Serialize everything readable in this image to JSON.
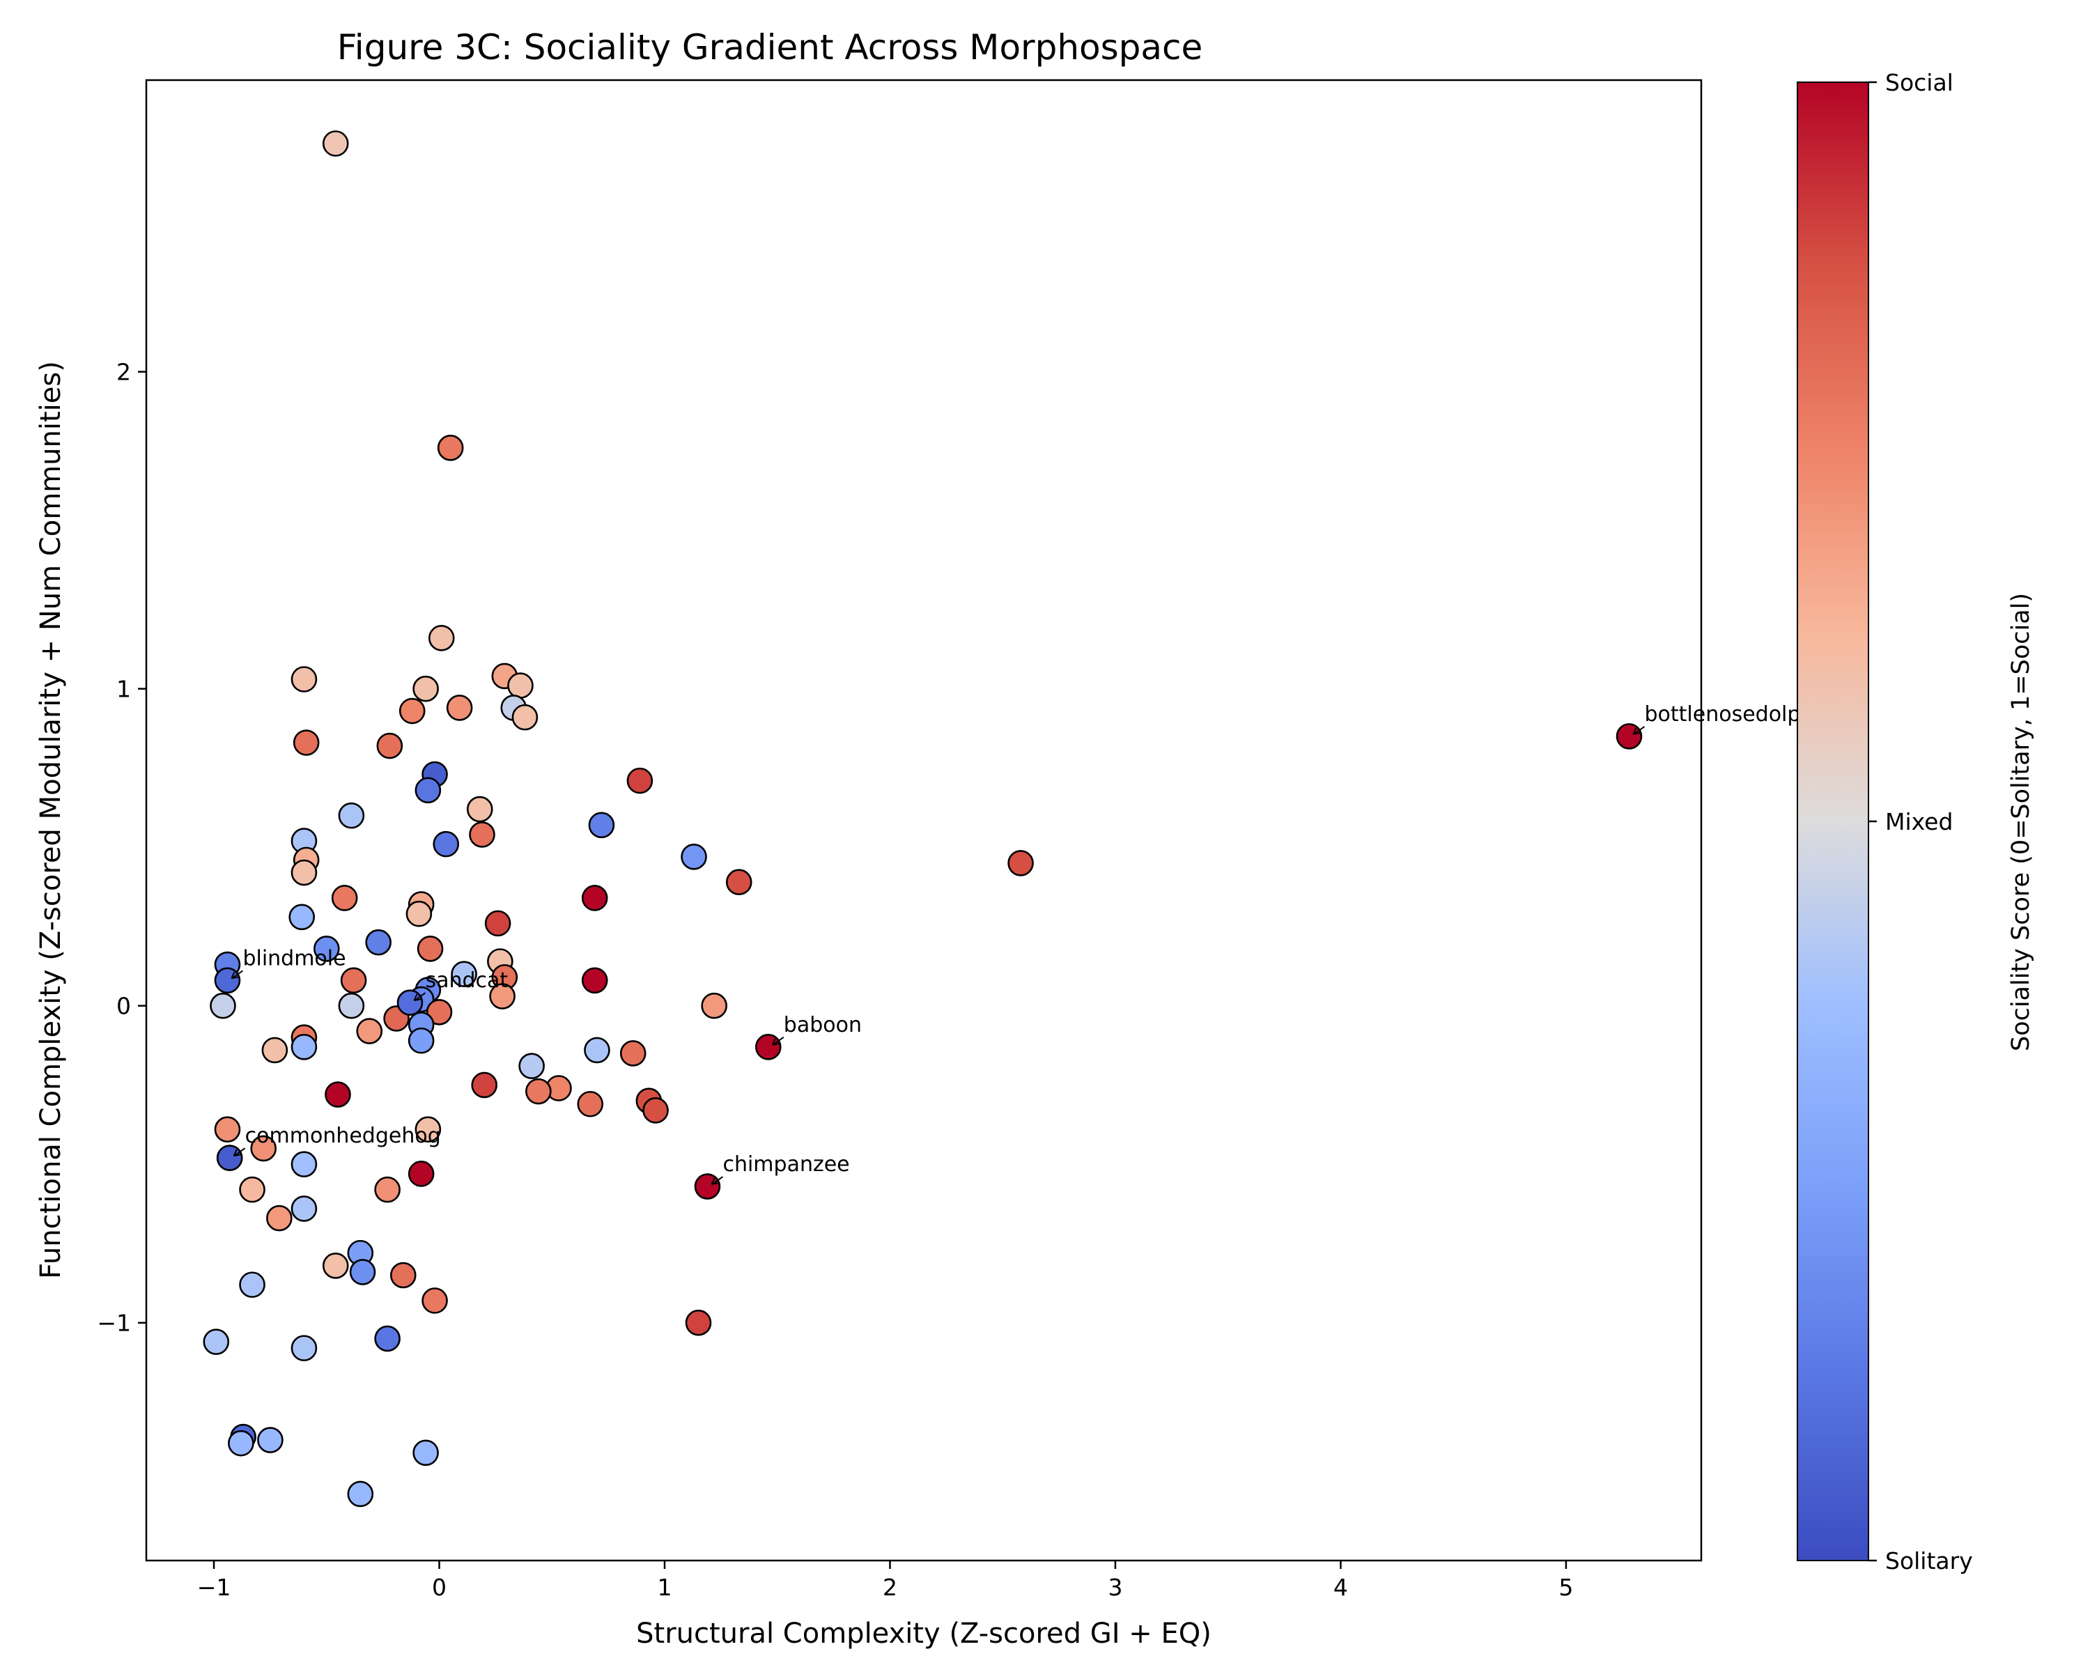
{
  "chart_data": {
    "type": "scatter",
    "title": "Figure 3C: Sociality Gradient Across Morphospace",
    "xlabel": "Structural Complexity (Z-scored GI + EQ)",
    "ylabel": "Functional Complexity (Z-scored Modularity + Num Communities)",
    "xlim": [
      -1.3,
      5.6
    ],
    "ylim": [
      -1.75,
      2.92
    ],
    "xticks": [
      -1,
      0,
      1,
      2,
      3,
      4,
      5
    ],
    "xtick_labels": [
      "−1",
      "0",
      "1",
      "2",
      "3",
      "4",
      "5"
    ],
    "yticks": [
      -1,
      0,
      1,
      2
    ],
    "ytick_labels": [
      "−1",
      "0",
      "1",
      "2"
    ],
    "grid": false,
    "colormap": "coolwarm",
    "colorbar": {
      "label": "Sociality Score (0=Solitary, 1=Social)",
      "range": [
        0,
        1
      ],
      "ticks": [
        0,
        0.5,
        1
      ],
      "tick_labels": [
        "Solitary",
        "Mixed",
        "Social"
      ]
    },
    "points": [
      {
        "x": -0.46,
        "y": 2.72,
        "c": 0.58
      },
      {
        "x": 0.05,
        "y": 1.76,
        "c": 0.78
      },
      {
        "x": 0.01,
        "y": 1.16,
        "c": 0.6
      },
      {
        "x": -0.6,
        "y": 1.03,
        "c": 0.6
      },
      {
        "x": 0.29,
        "y": 1.04,
        "c": 0.67
      },
      {
        "x": 0.36,
        "y": 1.01,
        "c": 0.6
      },
      {
        "x": -0.06,
        "y": 1.0,
        "c": 0.6
      },
      {
        "x": 0.09,
        "y": 0.94,
        "c": 0.72
      },
      {
        "x": 0.33,
        "y": 0.94,
        "c": 0.45
      },
      {
        "x": 0.38,
        "y": 0.91,
        "c": 0.6
      },
      {
        "x": -0.12,
        "y": 0.93,
        "c": 0.75
      },
      {
        "x": -0.59,
        "y": 0.83,
        "c": 0.8
      },
      {
        "x": -0.22,
        "y": 0.82,
        "c": 0.8
      },
      {
        "x": -0.02,
        "y": 0.73,
        "c": 0.05
      },
      {
        "x": -0.05,
        "y": 0.68,
        "c": 0.12
      },
      {
        "x": 0.89,
        "y": 0.71,
        "c": 0.9
      },
      {
        "x": 0.18,
        "y": 0.62,
        "c": 0.6
      },
      {
        "x": -0.39,
        "y": 0.6,
        "c": 0.4
      },
      {
        "x": 0.72,
        "y": 0.57,
        "c": 0.15
      },
      {
        "x": 0.19,
        "y": 0.54,
        "c": 0.8
      },
      {
        "x": -0.6,
        "y": 0.52,
        "c": 0.4
      },
      {
        "x": 0.03,
        "y": 0.51,
        "c": 0.12
      },
      {
        "x": 1.13,
        "y": 0.47,
        "c": 0.22
      },
      {
        "x": -0.59,
        "y": 0.46,
        "c": 0.65
      },
      {
        "x": 2.58,
        "y": 0.45,
        "c": 0.88
      },
      {
        "x": -0.6,
        "y": 0.42,
        "c": 0.6
      },
      {
        "x": 1.33,
        "y": 0.39,
        "c": 0.88
      },
      {
        "x": -0.42,
        "y": 0.34,
        "c": 0.78
      },
      {
        "x": 0.69,
        "y": 0.34,
        "c": 1.0
      },
      {
        "x": -0.08,
        "y": 0.32,
        "c": 0.66
      },
      {
        "x": -0.09,
        "y": 0.29,
        "c": 0.6
      },
      {
        "x": -0.61,
        "y": 0.28,
        "c": 0.35
      },
      {
        "x": 0.26,
        "y": 0.26,
        "c": 0.9
      },
      {
        "x": -0.27,
        "y": 0.2,
        "c": 0.15
      },
      {
        "x": -0.5,
        "y": 0.18,
        "c": 0.2
      },
      {
        "x": -0.04,
        "y": 0.18,
        "c": 0.8
      },
      {
        "x": 0.27,
        "y": 0.14,
        "c": 0.6
      },
      {
        "x": -0.94,
        "y": 0.13,
        "c": 0.15
      },
      {
        "x": 0.11,
        "y": 0.1,
        "c": 0.4
      },
      {
        "x": 0.29,
        "y": 0.09,
        "c": 0.8
      },
      {
        "x": -0.38,
        "y": 0.08,
        "c": 0.8
      },
      {
        "x": 0.69,
        "y": 0.08,
        "c": 1.0
      },
      {
        "x": -0.05,
        "y": 0.05,
        "c": 0.18
      },
      {
        "x": 0.28,
        "y": 0.03,
        "c": 0.7
      },
      {
        "x": -0.08,
        "y": 0.02,
        "c": 0.18
      },
      {
        "x": -0.96,
        "y": 0.0,
        "c": 0.45
      },
      {
        "x": -0.39,
        "y": 0.0,
        "c": 0.45
      },
      {
        "x": 1.22,
        "y": 0.0,
        "c": 0.7
      },
      {
        "x": 0.0,
        "y": -0.02,
        "c": 0.8
      },
      {
        "x": -0.19,
        "y": -0.04,
        "c": 0.82
      },
      {
        "x": -0.08,
        "y": -0.06,
        "c": 0.22
      },
      {
        "x": -0.31,
        "y": -0.08,
        "c": 0.7
      },
      {
        "x": -0.6,
        "y": -0.1,
        "c": 0.78
      },
      {
        "x": -0.08,
        "y": -0.11,
        "c": 0.25
      },
      {
        "x": -0.6,
        "y": -0.13,
        "c": 0.35
      },
      {
        "x": -0.73,
        "y": -0.14,
        "c": 0.6
      },
      {
        "x": 0.7,
        "y": -0.14,
        "c": 0.4
      },
      {
        "x": 0.86,
        "y": -0.15,
        "c": 0.8
      },
      {
        "x": 0.41,
        "y": -0.19,
        "c": 0.42
      },
      {
        "x": 0.2,
        "y": -0.25,
        "c": 0.9
      },
      {
        "x": 0.53,
        "y": -0.26,
        "c": 0.75
      },
      {
        "x": 0.44,
        "y": -0.27,
        "c": 0.78
      },
      {
        "x": -0.45,
        "y": -0.28,
        "c": 1.0
      },
      {
        "x": 0.67,
        "y": -0.31,
        "c": 0.8
      },
      {
        "x": 0.93,
        "y": -0.3,
        "c": 0.88
      },
      {
        "x": 0.96,
        "y": -0.33,
        "c": 0.88
      },
      {
        "x": -0.94,
        "y": -0.39,
        "c": 0.72
      },
      {
        "x": -0.05,
        "y": -0.39,
        "c": 0.6
      },
      {
        "x": -0.78,
        "y": -0.45,
        "c": 0.72
      },
      {
        "x": -0.93,
        "y": -0.48,
        "c": 0.05
      },
      {
        "x": -0.6,
        "y": -0.5,
        "c": 0.38
      },
      {
        "x": -0.08,
        "y": -0.53,
        "c": 1.0
      },
      {
        "x": -0.83,
        "y": -0.58,
        "c": 0.62
      },
      {
        "x": -0.23,
        "y": -0.58,
        "c": 0.72
      },
      {
        "x": -0.6,
        "y": -0.64,
        "c": 0.4
      },
      {
        "x": -0.71,
        "y": -0.67,
        "c": 0.7
      },
      {
        "x": -0.35,
        "y": -0.78,
        "c": 0.25
      },
      {
        "x": -0.46,
        "y": -0.82,
        "c": 0.6
      },
      {
        "x": -0.34,
        "y": -0.84,
        "c": 0.2
      },
      {
        "x": -0.16,
        "y": -0.85,
        "c": 0.8
      },
      {
        "x": -0.83,
        "y": -0.88,
        "c": 0.4
      },
      {
        "x": -0.02,
        "y": -0.93,
        "c": 0.78
      },
      {
        "x": 1.15,
        "y": -1.0,
        "c": 0.9
      },
      {
        "x": -0.23,
        "y": -1.05,
        "c": 0.12
      },
      {
        "x": -0.99,
        "y": -1.06,
        "c": 0.4
      },
      {
        "x": -0.6,
        "y": -1.08,
        "c": 0.4
      },
      {
        "x": -0.87,
        "y": -1.36,
        "c": 0.08
      },
      {
        "x": -0.75,
        "y": -1.37,
        "c": 0.35
      },
      {
        "x": -0.88,
        "y": -1.38,
        "c": 0.35
      },
      {
        "x": -0.06,
        "y": -1.41,
        "c": 0.35
      },
      {
        "x": -0.35,
        "y": -1.54,
        "c": 0.35
      }
    ],
    "labeled_points": [
      {
        "label": "bottlenosedolphin",
        "x": 5.28,
        "y": 0.85,
        "c": 1.0
      },
      {
        "label": "baboon",
        "x": 1.46,
        "y": -0.13,
        "c": 1.0
      },
      {
        "label": "chimpanzee",
        "x": 1.19,
        "y": -0.57,
        "c": 1.0
      },
      {
        "label": "blindmole",
        "x": -0.94,
        "y": 0.08,
        "c": 0.08
      },
      {
        "label": "sandcat",
        "x": -0.13,
        "y": 0.01,
        "c": 0.1
      },
      {
        "label": "commonhedgehog",
        "x": -0.93,
        "y": -0.48,
        "c": 0.05
      }
    ]
  }
}
